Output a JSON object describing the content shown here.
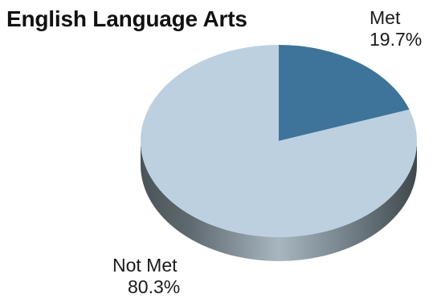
{
  "chart_data": {
    "type": "pie",
    "title": "English Language Arts",
    "style": "3d",
    "slices": [
      {
        "label": "Met",
        "value": 19.7,
        "value_label": "19.7%",
        "color": "#3e7499",
        "side_color": "#2a4c63"
      },
      {
        "label": "Not Met",
        "value": 80.3,
        "value_label": "80.3%",
        "color": "#bcd0e0",
        "side_color": "#7d8d98"
      }
    ]
  }
}
